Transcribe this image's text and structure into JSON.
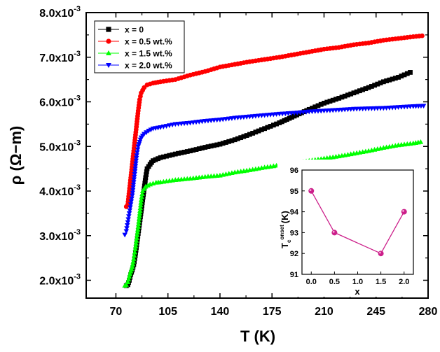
{
  "chart_data": [
    {
      "type": "scatter",
      "xlabel": "T (K)",
      "ylabel": "ρ (Ω−m)",
      "xlim": [
        50,
        280
      ],
      "ylim": [
        0.0016,
        0.008
      ],
      "x_ticks": [
        70,
        105,
        140,
        175,
        210,
        245,
        280
      ],
      "y_ticks": [
        0.002,
        0.003,
        0.004,
        0.005,
        0.006,
        0.007,
        0.008
      ],
      "x_tick_labels": [
        "70",
        "105",
        "140",
        "175",
        "210",
        "245",
        "280"
      ],
      "y_tick_labels": [
        {
          "mant": "2.0x10",
          "exp": "-3"
        },
        {
          "mant": "3.0x10",
          "exp": "-3"
        },
        {
          "mant": "4.0x10",
          "exp": "-3"
        },
        {
          "mant": "5.0x10",
          "exp": "-3"
        },
        {
          "mant": "6.0x10",
          "exp": "-3"
        },
        {
          "mant": "7.0x10",
          "exp": "-3"
        },
        {
          "mant": "8.0x10",
          "exp": "-3"
        }
      ],
      "grid": false,
      "legend_position": "top-left",
      "series": [
        {
          "name": "x = 0",
          "color": "#000000",
          "marker": "square",
          "points": [
            [
              77,
              0.00188
            ],
            [
              78,
              0.0019
            ],
            [
              79,
              0.002
            ],
            [
              80,
              0.00213
            ],
            [
              81,
              0.00223
            ],
            [
              82,
              0.00235
            ],
            [
              83,
              0.00255
            ],
            [
              84,
              0.0028
            ],
            [
              85,
              0.00305
            ],
            [
              86,
              0.0033
            ],
            [
              87,
              0.00355
            ],
            [
              88,
              0.0038
            ],
            [
              89,
              0.00405
            ],
            [
              90,
              0.0043
            ],
            [
              91,
              0.0045
            ],
            [
              93,
              0.0046
            ],
            [
              95,
              0.00468
            ],
            [
              100,
              0.00475
            ],
            [
              110,
              0.00483
            ],
            [
              120,
              0.0049
            ],
            [
              130,
              0.00498
            ],
            [
              140,
              0.00505
            ],
            [
              150,
              0.00515
            ],
            [
              160,
              0.00527
            ],
            [
              170,
              0.0054
            ],
            [
              180,
              0.00553
            ],
            [
              190,
              0.00568
            ],
            [
              200,
              0.00583
            ],
            [
              210,
              0.00597
            ],
            [
              220,
              0.00608
            ],
            [
              230,
              0.0062
            ],
            [
              240,
              0.00632
            ],
            [
              250,
              0.00645
            ],
            [
              260,
              0.00655
            ],
            [
              268,
              0.00666
            ]
          ]
        },
        {
          "name": "x = 0.5 wt.%",
          "color": "#ff0000",
          "marker": "circle",
          "points": [
            [
              77,
              0.00365
            ],
            [
              78,
              0.0037
            ],
            [
              79,
              0.004
            ],
            [
              80,
              0.0043
            ],
            [
              81,
              0.0046
            ],
            [
              82,
              0.0049
            ],
            [
              83,
              0.0052
            ],
            [
              84,
              0.0055
            ],
            [
              85,
              0.0058
            ],
            [
              86,
              0.00605
            ],
            [
              87,
              0.0062
            ],
            [
              89,
              0.00632
            ],
            [
              91,
              0.00638
            ],
            [
              95,
              0.00642
            ],
            [
              100,
              0.00645
            ],
            [
              110,
              0.0065
            ],
            [
              120,
              0.0066
            ],
            [
              130,
              0.00668
            ],
            [
              140,
              0.00678
            ],
            [
              150,
              0.00684
            ],
            [
              160,
              0.0069
            ],
            [
              170,
              0.00695
            ],
            [
              180,
              0.007
            ],
            [
              190,
              0.00706
            ],
            [
              200,
              0.00712
            ],
            [
              210,
              0.00718
            ],
            [
              220,
              0.00722
            ],
            [
              230,
              0.00728
            ],
            [
              240,
              0.00732
            ],
            [
              250,
              0.00738
            ],
            [
              260,
              0.00742
            ],
            [
              270,
              0.00746
            ],
            [
              276,
              0.00748
            ]
          ]
        },
        {
          "name": "x = 1.5 wt.%",
          "color": "#00ff00",
          "marker": "triangle-up",
          "points": [
            [
              76,
              0.00188
            ],
            [
              77,
              0.0019
            ],
            [
              78,
              0.00196
            ],
            [
              79,
              0.00208
            ],
            [
              80,
              0.0022
            ],
            [
              81,
              0.0023
            ],
            [
              82,
              0.00248
            ],
            [
              83,
              0.0027
            ],
            [
              84,
              0.00295
            ],
            [
              85,
              0.0032
            ],
            [
              86,
              0.0035
            ],
            [
              87,
              0.0038
            ],
            [
              88,
              0.004
            ],
            [
              90,
              0.0041
            ],
            [
              93,
              0.00415
            ],
            [
              97,
              0.00419
            ],
            [
              100,
              0.0042
            ],
            [
              110,
              0.00425
            ],
            [
              120,
              0.00428
            ],
            [
              130,
              0.00432
            ],
            [
              140,
              0.00435
            ],
            [
              150,
              0.00442
            ],
            [
              160,
              0.00447
            ],
            [
              170,
              0.00453
            ],
            [
              180,
              0.00458
            ],
            [
              190,
              0.00462
            ],
            [
              200,
              0.00468
            ],
            [
              210,
              0.00473
            ],
            [
              220,
              0.00478
            ],
            [
              230,
              0.00484
            ],
            [
              240,
              0.0049
            ],
            [
              250,
              0.00497
            ],
            [
              260,
              0.00503
            ],
            [
              270,
              0.00507
            ],
            [
              275,
              0.0051
            ]
          ]
        },
        {
          "name": "x = 2.0 wt.%",
          "color": "#0000ff",
          "marker": "triangle-down",
          "points": [
            [
              76,
              0.00302
            ],
            [
              77,
              0.0031
            ],
            [
              78,
              0.0033
            ],
            [
              79,
              0.0035
            ],
            [
              80,
              0.0037
            ],
            [
              81,
              0.0039
            ],
            [
              82,
              0.0042
            ],
            [
              83,
              0.0045
            ],
            [
              84,
              0.0048
            ],
            [
              85,
              0.005
            ],
            [
              86,
              0.0051
            ],
            [
              87,
              0.0052
            ],
            [
              89,
              0.00528
            ],
            [
              92,
              0.00535
            ],
            [
              95,
              0.0054
            ],
            [
              100,
              0.00543
            ],
            [
              110,
              0.0055
            ],
            [
              120,
              0.00553
            ],
            [
              130,
              0.00557
            ],
            [
              140,
              0.0056
            ],
            [
              150,
              0.00564
            ],
            [
              160,
              0.00567
            ],
            [
              170,
              0.0057
            ],
            [
              180,
              0.00573
            ],
            [
              190,
              0.00575
            ],
            [
              200,
              0.00578
            ],
            [
              210,
              0.0058
            ],
            [
              220,
              0.00582
            ],
            [
              230,
              0.00584
            ],
            [
              240,
              0.00585
            ],
            [
              250,
              0.00586
            ],
            [
              260,
              0.00588
            ],
            [
              270,
              0.0059
            ],
            [
              277,
              0.00591
            ]
          ]
        }
      ]
    },
    {
      "type": "line",
      "xlabel": "x",
      "ylabel_main": "T",
      "ylabel_sup": "onset",
      "ylabel_sub": "c",
      "ylabel_unit": "(K)",
      "xlim": [
        -0.2,
        2.2
      ],
      "ylim": [
        91,
        96
      ],
      "x_ticks": [
        0.0,
        0.5,
        1.0,
        1.5,
        2.0
      ],
      "x_tick_labels": [
        "0.0",
        "0.5",
        "1.0",
        "1.5",
        "2.0"
      ],
      "y_ticks": [
        91,
        92,
        93,
        94,
        95,
        96
      ],
      "y_tick_labels": [
        "91",
        "92",
        "93",
        "94",
        "95",
        "96"
      ],
      "color": "#cc1f8a",
      "points": [
        [
          0.0,
          95
        ],
        [
          0.5,
          93
        ],
        [
          1.5,
          92
        ],
        [
          2.0,
          94
        ]
      ]
    }
  ]
}
